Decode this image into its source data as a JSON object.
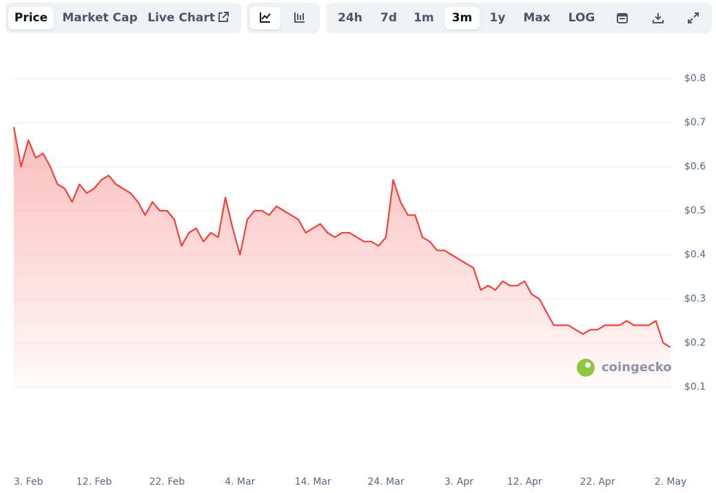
{
  "toolbar": {
    "views": [
      "Price",
      "Market Cap",
      "Live Chart"
    ],
    "ranges": [
      "24h",
      "7d",
      "1m",
      "3m",
      "1y",
      "Max",
      "LOG"
    ]
  },
  "watermark": "coingecko",
  "chart_data": {
    "type": "line",
    "color": "#f0403b",
    "x": [
      "1. Feb",
      "2. Feb",
      "3. Feb",
      "4. Feb",
      "5. Feb",
      "6. Feb",
      "7. Feb",
      "8. Feb",
      "9. Feb",
      "10. Feb",
      "11. Feb",
      "12. Feb",
      "13. Feb",
      "14. Feb",
      "15. Feb",
      "16. Feb",
      "17. Feb",
      "18. Feb",
      "19. Feb",
      "20. Feb",
      "21. Feb",
      "22. Feb",
      "23. Feb",
      "24. Feb",
      "25. Feb",
      "26. Feb",
      "27. Feb",
      "28. Feb",
      "1. Mar",
      "2. Mar",
      "3. Mar",
      "4. Mar",
      "5. Mar",
      "6. Mar",
      "7. Mar",
      "8. Mar",
      "9. Mar",
      "10. Mar",
      "11. Mar",
      "12. Mar",
      "13. Mar",
      "14. Mar",
      "15. Mar",
      "16. Mar",
      "17. Mar",
      "18. Mar",
      "19. Mar",
      "20. Mar",
      "21. Mar",
      "22. Mar",
      "23. Mar",
      "24. Mar",
      "25. Mar",
      "26. Mar",
      "27. Mar",
      "28. Mar",
      "29. Mar",
      "30. Mar",
      "31. Mar",
      "1. Apr",
      "2. Apr",
      "3. Apr",
      "4. Apr",
      "5. Apr",
      "6. Apr",
      "7. Apr",
      "8. Apr",
      "9. Apr",
      "10. Apr",
      "11. Apr",
      "12. Apr",
      "13. Apr",
      "14. Apr",
      "15. Apr",
      "16. Apr",
      "17. Apr",
      "18. Apr",
      "19. Apr",
      "20. Apr",
      "21. Apr",
      "22. Apr",
      "23. Apr",
      "24. Apr",
      "25. Apr",
      "26. Apr",
      "27. Apr",
      "28. Apr",
      "29. Apr",
      "30. Apr",
      "1. May",
      "2. May"
    ],
    "values": [
      0.69,
      0.6,
      0.66,
      0.62,
      0.63,
      0.6,
      0.56,
      0.55,
      0.52,
      0.56,
      0.54,
      0.55,
      0.57,
      0.58,
      0.56,
      0.55,
      0.54,
      0.52,
      0.49,
      0.52,
      0.5,
      0.5,
      0.48,
      0.42,
      0.45,
      0.46,
      0.43,
      0.45,
      0.44,
      0.53,
      0.46,
      0.4,
      0.48,
      0.5,
      0.5,
      0.49,
      0.51,
      0.5,
      0.49,
      0.48,
      0.45,
      0.46,
      0.47,
      0.45,
      0.44,
      0.45,
      0.45,
      0.44,
      0.43,
      0.43,
      0.42,
      0.44,
      0.57,
      0.52,
      0.49,
      0.49,
      0.44,
      0.43,
      0.41,
      0.41,
      0.4,
      0.39,
      0.38,
      0.37,
      0.32,
      0.33,
      0.32,
      0.34,
      0.33,
      0.33,
      0.34,
      0.31,
      0.3,
      0.27,
      0.24,
      0.24,
      0.24,
      0.23,
      0.22,
      0.23,
      0.23,
      0.24,
      0.24,
      0.24,
      0.25,
      0.24,
      0.24,
      0.24,
      0.25,
      0.2,
      0.19
    ],
    "xticks": [
      "3. Feb",
      "12. Feb",
      "22. Feb",
      "4. Mar",
      "14. Mar",
      "24. Mar",
      "3. Apr",
      "12. Apr",
      "22. Apr",
      "2. May"
    ],
    "ylim": [
      0.1,
      0.8
    ],
    "yticks": [
      {
        "value": 0.1,
        "label": "$0.1"
      },
      {
        "value": 0.2,
        "label": "$0.2"
      },
      {
        "value": 0.3,
        "label": "$0.3"
      },
      {
        "value": 0.4,
        "label": "$0.4"
      },
      {
        "value": 0.5,
        "label": "$0.5"
      },
      {
        "value": 0.6,
        "label": "$0.6"
      },
      {
        "value": 0.7,
        "label": "$0.7"
      },
      {
        "value": 0.8,
        "label": "$0.8"
      }
    ],
    "grid": true
  }
}
